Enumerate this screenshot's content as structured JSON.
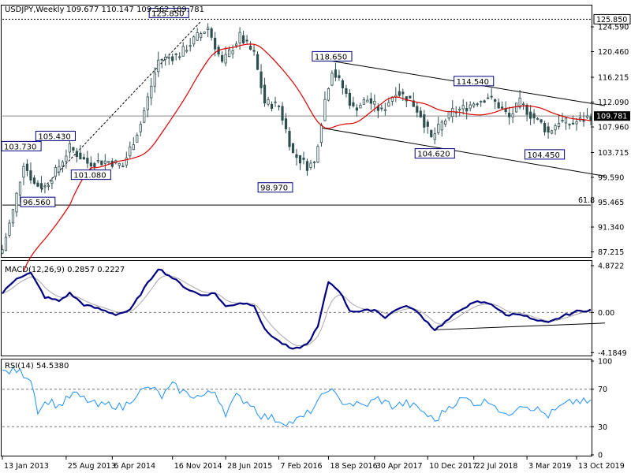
{
  "chart_data": {
    "type": "candlestick",
    "symbol_header": "USDJPY,Weekly",
    "ohlc_header": "109.677 110.147 109.562 109.781",
    "price": {
      "ylim": [
        86.5,
        128.0
      ],
      "axis_ticks": [
        "124.590",
        "120.460",
        "116.215",
        "112.090",
        "107.960",
        "103.715",
        "99.590",
        "95.465",
        "91.340",
        "87.215"
      ],
      "axis_tick_values": [
        124.59,
        120.46,
        116.215,
        112.09,
        107.96,
        103.715,
        99.59,
        95.465,
        91.34,
        87.215
      ],
      "last_price": {
        "value": 109.781,
        "label": "109.781"
      },
      "high_line": {
        "value": 125.85,
        "label": "125.850"
      },
      "fib_line": {
        "value": 95.0,
        "label": "61.8"
      },
      "callouts": [
        {
          "label": "125.850",
          "xi": 47,
          "value": 125.85
        },
        {
          "label": "118.650",
          "xi": 93,
          "value": 118.65
        },
        {
          "label": "114.540",
          "xi": 133,
          "value": 114.54
        },
        {
          "label": "104.620",
          "xi": 122,
          "value": 104.62
        },
        {
          "label": "104.450",
          "xi": 153,
          "value": 104.45
        },
        {
          "label": "105.430",
          "xi": 15,
          "value": 105.43
        },
        {
          "label": "101.080",
          "xi": 25,
          "value": 101.08
        },
        {
          "label": "98.970",
          "xi": 77,
          "value": 98.97
        },
        {
          "label": "96.560",
          "xi": 10,
          "value": 96.56
        },
        {
          "label": "103.730",
          "xi": 0,
          "value": 103.73
        }
      ],
      "channel_upper": [
        {
          "xi": 93,
          "value": 118.9
        },
        {
          "xi": 170,
          "value": 111.5
        }
      ],
      "channel_lower": [
        {
          "xi": 90,
          "value": 107.8
        },
        {
          "xi": 170,
          "value": 99.8
        }
      ],
      "trend_dashed": [
        {
          "xi": 11,
          "value": 97.5
        },
        {
          "xi": 56,
          "value": 125.5
        }
      ],
      "anchors": [
        {
          "xi": 0,
          "value": 87.6
        },
        {
          "xi": 3,
          "value": 94.0
        },
        {
          "xi": 6,
          "value": 102.0
        },
        {
          "xi": 9,
          "value": 98.5
        },
        {
          "xi": 12,
          "value": 98.0
        },
        {
          "xi": 15,
          "value": 100.5
        },
        {
          "xi": 19,
          "value": 104.5
        },
        {
          "xi": 24,
          "value": 102.0
        },
        {
          "xi": 30,
          "value": 102.3
        },
        {
          "xi": 34,
          "value": 101.5
        },
        {
          "xi": 39,
          "value": 108.5
        },
        {
          "xi": 44,
          "value": 119.0
        },
        {
          "xi": 50,
          "value": 120.0
        },
        {
          "xi": 55,
          "value": 123.0
        },
        {
          "xi": 58,
          "value": 124.5
        },
        {
          "xi": 62,
          "value": 118.5
        },
        {
          "xi": 67,
          "value": 123.0
        },
        {
          "xi": 71,
          "value": 120.0
        },
        {
          "xi": 74,
          "value": 112.0
        },
        {
          "xi": 78,
          "value": 111.5
        },
        {
          "xi": 82,
          "value": 103.5
        },
        {
          "xi": 86,
          "value": 101.5
        },
        {
          "xi": 88,
          "value": 102.0
        },
        {
          "xi": 91,
          "value": 112.5
        },
        {
          "xi": 93,
          "value": 117.5
        },
        {
          "xi": 96,
          "value": 114.5
        },
        {
          "xi": 99,
          "value": 111.0
        },
        {
          "xi": 103,
          "value": 112.5
        },
        {
          "xi": 107,
          "value": 110.5
        },
        {
          "xi": 111,
          "value": 114.0
        },
        {
          "xi": 115,
          "value": 112.5
        },
        {
          "xi": 118,
          "value": 110.0
        },
        {
          "xi": 121,
          "value": 106.0
        },
        {
          "xi": 124,
          "value": 108.5
        },
        {
          "xi": 127,
          "value": 110.5
        },
        {
          "xi": 130,
          "value": 111.0
        },
        {
          "xi": 133,
          "value": 112.0
        },
        {
          "xi": 137,
          "value": 113.0
        },
        {
          "xi": 140,
          "value": 111.5
        },
        {
          "xi": 143,
          "value": 109.5
        },
        {
          "xi": 146,
          "value": 112.0
        },
        {
          "xi": 149,
          "value": 110.0
        },
        {
          "xi": 152,
          "value": 108.5
        },
        {
          "xi": 154,
          "value": 107.0
        },
        {
          "xi": 157,
          "value": 109.0
        },
        {
          "xi": 160,
          "value": 108.5
        },
        {
          "xi": 163,
          "value": 109.0
        },
        {
          "xi": 166,
          "value": 109.781
        }
      ]
    },
    "macd": {
      "label": "MACD(12,26,9) 0.2857 0.2227",
      "ylim": [
        -4.4,
        5.2
      ],
      "axis_ticks": [
        "4.8722",
        "0.00",
        "-4.1849"
      ],
      "axis_tick_values": [
        4.8722,
        0.0,
        -4.1849
      ],
      "trendline": [
        {
          "xi": 122,
          "value": -1.8
        },
        {
          "xi": 170,
          "value": -1.1
        }
      ],
      "main_anchors": [
        {
          "xi": 0,
          "value": 2.0
        },
        {
          "xi": 4,
          "value": 3.6
        },
        {
          "xi": 8,
          "value": 4.1
        },
        {
          "xi": 12,
          "value": 1.6
        },
        {
          "xi": 16,
          "value": 1.2
        },
        {
          "xi": 19,
          "value": 2.0
        },
        {
          "xi": 23,
          "value": 0.8
        },
        {
          "xi": 27,
          "value": 0.4
        },
        {
          "xi": 32,
          "value": -0.2
        },
        {
          "xi": 36,
          "value": 0.2
        },
        {
          "xi": 40,
          "value": 2.5
        },
        {
          "xi": 44,
          "value": 4.6
        },
        {
          "xi": 48,
          "value": 3.6
        },
        {
          "xi": 52,
          "value": 2.5
        },
        {
          "xi": 56,
          "value": 1.8
        },
        {
          "xi": 60,
          "value": 2.0
        },
        {
          "xi": 63,
          "value": 0.6
        },
        {
          "xi": 67,
          "value": 1.0
        },
        {
          "xi": 71,
          "value": 0.8
        },
        {
          "xi": 74,
          "value": -1.8
        },
        {
          "xi": 78,
          "value": -3.0
        },
        {
          "xi": 82,
          "value": -3.9
        },
        {
          "xi": 86,
          "value": -3.3
        },
        {
          "xi": 89,
          "value": -1.5
        },
        {
          "xi": 92,
          "value": 3.2
        },
        {
          "xi": 95,
          "value": 2.3
        },
        {
          "xi": 98,
          "value": 0.2
        },
        {
          "xi": 101,
          "value": 0.1
        },
        {
          "xi": 105,
          "value": 0.3
        },
        {
          "xi": 108,
          "value": -0.5
        },
        {
          "xi": 112,
          "value": 0.5
        },
        {
          "xi": 115,
          "value": 0.6
        },
        {
          "xi": 118,
          "value": -0.3
        },
        {
          "xi": 122,
          "value": -1.8
        },
        {
          "xi": 126,
          "value": -0.7
        },
        {
          "xi": 130,
          "value": 0.5
        },
        {
          "xi": 134,
          "value": 1.1
        },
        {
          "xi": 138,
          "value": 0.9
        },
        {
          "xi": 142,
          "value": -0.3
        },
        {
          "xi": 146,
          "value": -0.1
        },
        {
          "xi": 150,
          "value": -0.8
        },
        {
          "xi": 154,
          "value": -1.1
        },
        {
          "xi": 158,
          "value": -0.4
        },
        {
          "xi": 162,
          "value": 0.1
        },
        {
          "xi": 166,
          "value": 0.29
        }
      ]
    },
    "rsi": {
      "label": "RSI(14) 54.5380",
      "ylim": [
        0,
        100
      ],
      "axis_ticks": [
        "100",
        "70",
        "30",
        "0"
      ],
      "axis_tick_values": [
        100,
        70,
        30,
        0
      ],
      "levels": [
        70,
        30
      ],
      "anchors": [
        {
          "xi": 0,
          "value": 88
        },
        {
          "xi": 4,
          "value": 90
        },
        {
          "xi": 8,
          "value": 82
        },
        {
          "xi": 10,
          "value": 48
        },
        {
          "xi": 13,
          "value": 58
        },
        {
          "xi": 16,
          "value": 52
        },
        {
          "xi": 20,
          "value": 65
        },
        {
          "xi": 24,
          "value": 58
        },
        {
          "xi": 27,
          "value": 52
        },
        {
          "xi": 31,
          "value": 54
        },
        {
          "xi": 34,
          "value": 50
        },
        {
          "xi": 38,
          "value": 66
        },
        {
          "xi": 42,
          "value": 72
        },
        {
          "xi": 45,
          "value": 62
        },
        {
          "xi": 48,
          "value": 74
        },
        {
          "xi": 52,
          "value": 65
        },
        {
          "xi": 56,
          "value": 62
        },
        {
          "xi": 60,
          "value": 68
        },
        {
          "xi": 63,
          "value": 45
        },
        {
          "xi": 66,
          "value": 62
        },
        {
          "xi": 70,
          "value": 55
        },
        {
          "xi": 73,
          "value": 42
        },
        {
          "xi": 77,
          "value": 38
        },
        {
          "xi": 81,
          "value": 34
        },
        {
          "xi": 85,
          "value": 40
        },
        {
          "xi": 89,
          "value": 55
        },
        {
          "xi": 92,
          "value": 72
        },
        {
          "xi": 95,
          "value": 58
        },
        {
          "xi": 98,
          "value": 55
        },
        {
          "xi": 102,
          "value": 52
        },
        {
          "xi": 106,
          "value": 60
        },
        {
          "xi": 110,
          "value": 52
        },
        {
          "xi": 114,
          "value": 55
        },
        {
          "xi": 118,
          "value": 48
        },
        {
          "xi": 122,
          "value": 36
        },
        {
          "xi": 126,
          "value": 52
        },
        {
          "xi": 130,
          "value": 60
        },
        {
          "xi": 134,
          "value": 55
        },
        {
          "xi": 138,
          "value": 58
        },
        {
          "xi": 142,
          "value": 40
        },
        {
          "xi": 146,
          "value": 55
        },
        {
          "xi": 150,
          "value": 50
        },
        {
          "xi": 154,
          "value": 42
        },
        {
          "xi": 158,
          "value": 52
        },
        {
          "xi": 162,
          "value": 58
        },
        {
          "xi": 166,
          "value": 54.538
        }
      ]
    },
    "x_axis": {
      "n_bars": 167,
      "labels": [
        {
          "text": "13 Jan 2013",
          "xi": 0
        },
        {
          "text": "25 Aug 2013",
          "xi": 18
        },
        {
          "text": "6 Apr 2014",
          "xi": 31
        },
        {
          "text": "16 Nov 2014",
          "xi": 48
        },
        {
          "text": "28 Jun 2015",
          "xi": 63
        },
        {
          "text": "7 Feb 2016",
          "xi": 78
        },
        {
          "text": "18 Sep 2016",
          "xi": 92
        },
        {
          "text": "30 Apr 2017",
          "xi": 105
        },
        {
          "text": "10 Dec 2017",
          "xi": 120
        },
        {
          "text": "22 Jul 2018",
          "xi": 133
        },
        {
          "text": "3 Mar 2019",
          "xi": 148
        },
        {
          "text": "13 Oct 2019",
          "xi": 162
        }
      ]
    },
    "colors": {
      "candle": "#2f4f4f",
      "ma": "#dd0000",
      "macd_main": "#000080",
      "macd_signal": "#a9a9a9",
      "rsi": "#1e90ff",
      "callout_border": "#000080",
      "last_price_bg": "#000000",
      "last_price_text": "#ffffff"
    }
  }
}
